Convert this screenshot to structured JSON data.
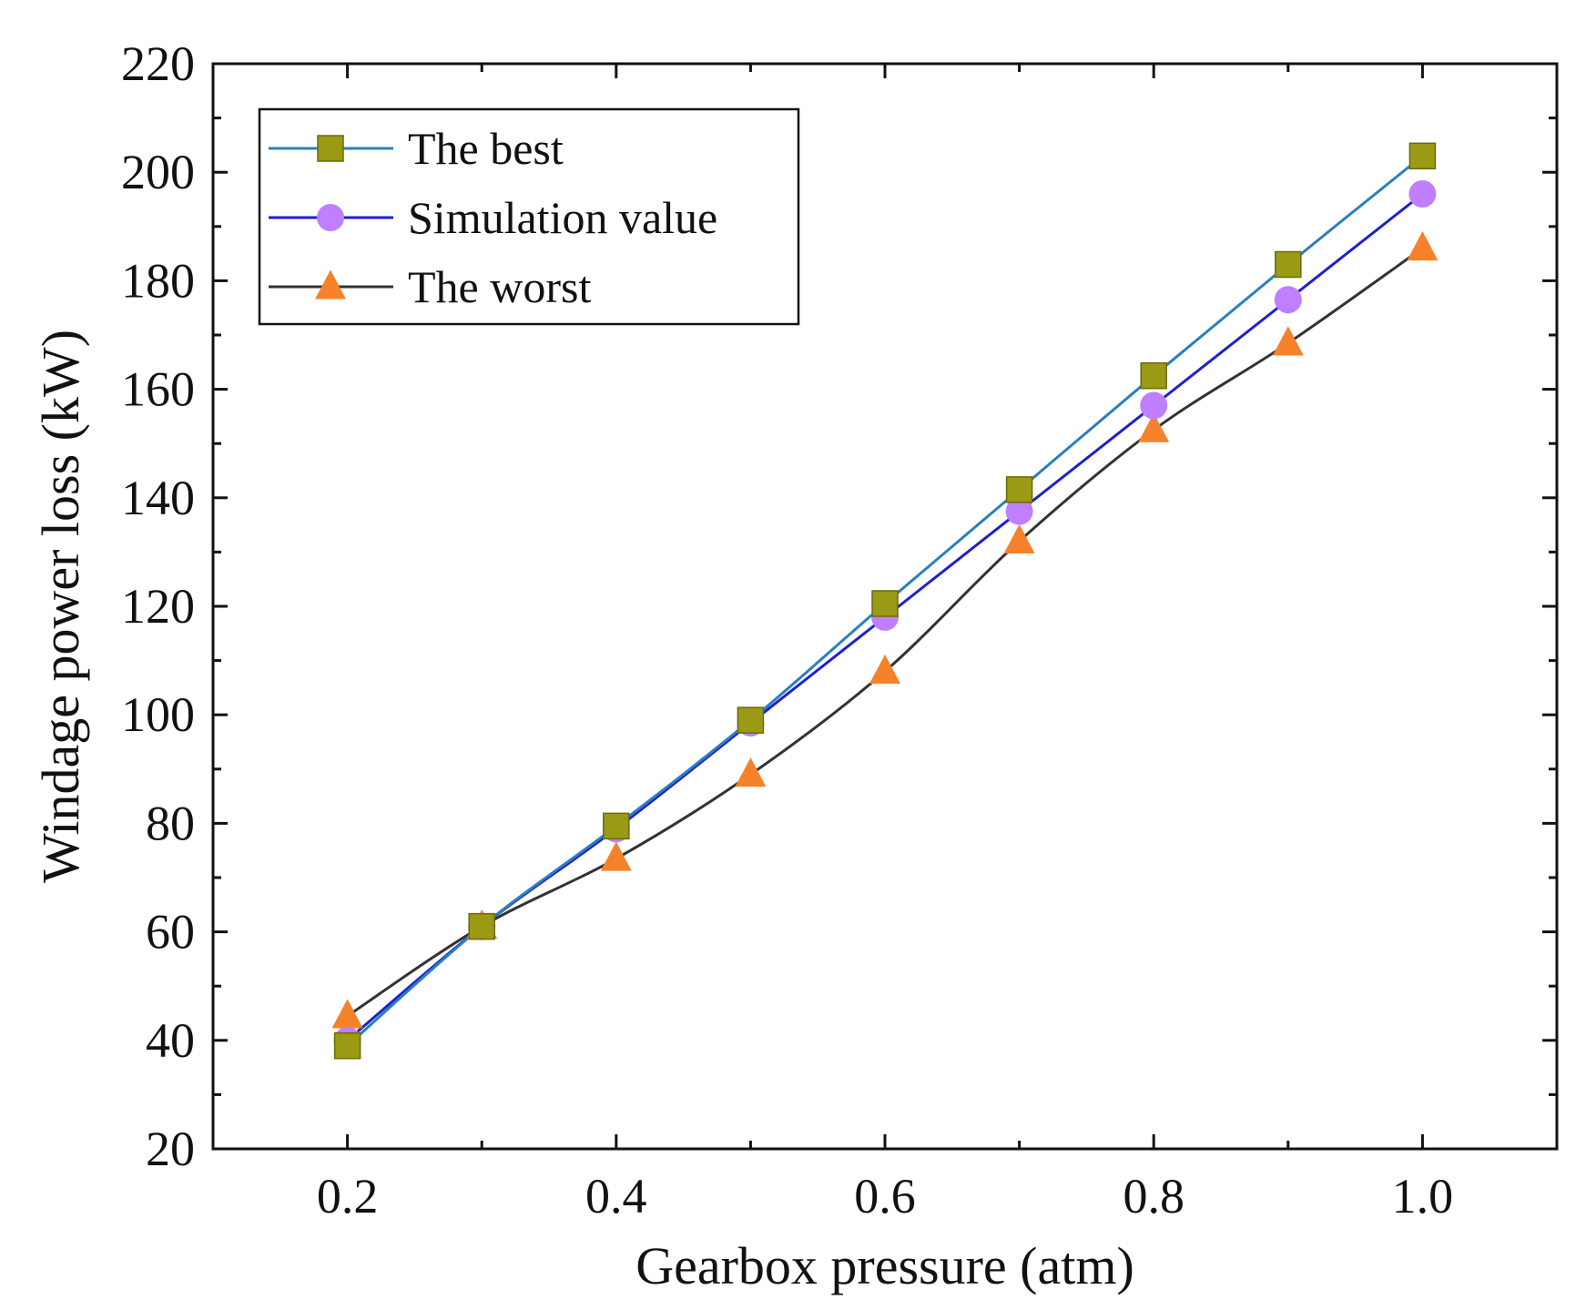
{
  "chart_data": {
    "type": "line",
    "title": "",
    "xlabel": "Gearbox pressure (atm)",
    "ylabel": "Windage power loss (kW)",
    "xlim": [
      0.1,
      1.1
    ],
    "ylim": [
      20,
      220
    ],
    "x_ticks": [
      "0.2",
      "0.4",
      "0.6",
      "0.8",
      "1.0"
    ],
    "y_ticks": [
      "20",
      "40",
      "60",
      "80",
      "100",
      "120",
      "140",
      "160",
      "180",
      "200",
      "220"
    ],
    "x": [
      0.2,
      0.3,
      0.4,
      0.5,
      0.6,
      0.7,
      0.8,
      0.9,
      1.0
    ],
    "grid": false,
    "legend_position": "top-left",
    "series": [
      {
        "name": "The best",
        "line_color": "#2a7fbf",
        "marker_color": "#9a9a14",
        "marker": "square",
        "values": [
          39,
          61,
          79.5,
          99,
          120.5,
          141.5,
          162.5,
          183,
          203
        ]
      },
      {
        "name": "Simulation value",
        "line_color": "#1f1fcf",
        "marker_color": "#bf7fff",
        "marker": "circle",
        "values": [
          40,
          61,
          79,
          98.5,
          118,
          137.5,
          157,
          176.5,
          196
        ]
      },
      {
        "name": "The worst",
        "line_color": "#333333",
        "marker_color": "#f5822a",
        "marker": "triangle",
        "values": [
          44.5,
          61,
          73.5,
          89,
          108,
          132,
          152.5,
          168.5,
          186
        ]
      }
    ]
  }
}
